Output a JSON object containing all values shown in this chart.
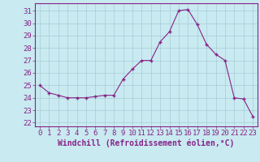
{
  "x": [
    0,
    1,
    2,
    3,
    4,
    5,
    6,
    7,
    8,
    9,
    10,
    11,
    12,
    13,
    14,
    15,
    16,
    17,
    18,
    19,
    20,
    21,
    22,
    23
  ],
  "y": [
    25.0,
    24.4,
    24.2,
    24.0,
    24.0,
    24.0,
    24.1,
    24.2,
    24.2,
    25.5,
    26.3,
    27.0,
    27.0,
    28.5,
    29.3,
    31.0,
    31.1,
    29.9,
    28.3,
    27.5,
    27.0,
    24.0,
    23.9,
    22.5
  ],
  "line_color": "#882288",
  "marker": "+",
  "marker_size": 3,
  "bg_color": "#c8eaf0",
  "grid_color": "#a8ccd8",
  "xlabel": "Windchill (Refroidissement éolien,°C)",
  "yticks": [
    22,
    23,
    24,
    25,
    26,
    27,
    28,
    29,
    30,
    31
  ],
  "xlim": [
    -0.5,
    23.5
  ],
  "ylim": [
    21.7,
    31.6
  ],
  "tick_color": "#882288",
  "label_color": "#882288",
  "font_size": 6.5,
  "xlabel_fontsize": 7
}
